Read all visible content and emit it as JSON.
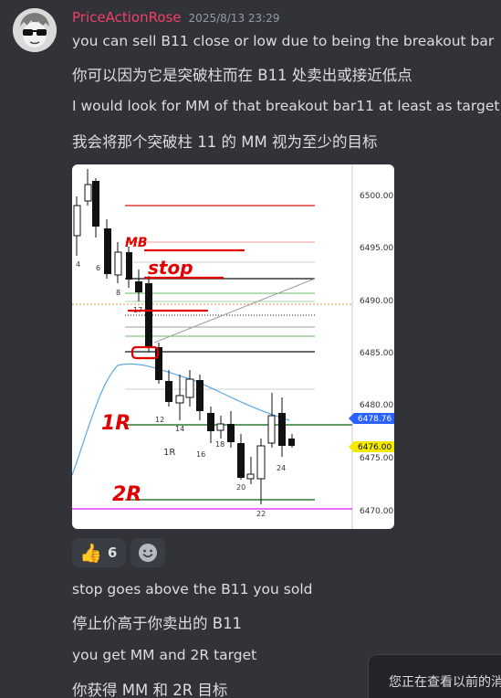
{
  "message": {
    "username": "PriceActionRose",
    "timestamp": "2025/8/13 23:29",
    "lines": [
      "you can sell B11 close or low due to being the breakout bar",
      "你可以因为它是突破柱而在 B11 处卖出或接近低点",
      "I would look for MM of that breakout bar11 at least as target",
      "我会将那个突破柱 11 的 MM 视为至少的目标"
    ]
  },
  "chart": {
    "price_axis": [
      "6500.00",
      "6495.00",
      "6490.00",
      "6485.00",
      "6480.00",
      "6475.00",
      "6470.00"
    ],
    "last_price_tag": "6478.76",
    "price_tag_2": "6476.00",
    "bar_numbers": [
      "4",
      "6",
      "8",
      "12",
      "14",
      "16",
      "18",
      "20",
      "22",
      "24"
    ],
    "bar_number_17": "17",
    "annotations": {
      "mb": "MB",
      "stop": "stop",
      "one_r_marker": "1R",
      "one_r_handwritten": "1R",
      "two_r": "2R"
    },
    "colors": {
      "red_line": "#e53935",
      "green_line": "#2e7d32",
      "magenta_line": "#e040fb",
      "ma_line": "#5aa9e6",
      "price_tag_blue": "#2962ff",
      "price_tag_yellow": "#f5e900"
    }
  },
  "reactions": {
    "thumbs_up_count": "6",
    "thumbs_up_emoji": "👍"
  },
  "followup": {
    "lines": [
      "stop goes above the B11 you sold",
      "停止价高于你卖出的 B11",
      "you get MM and 2R target",
      "你获得 MM 和 2R 目标"
    ]
  },
  "toast": {
    "text": "您正在查看以前的消息"
  }
}
